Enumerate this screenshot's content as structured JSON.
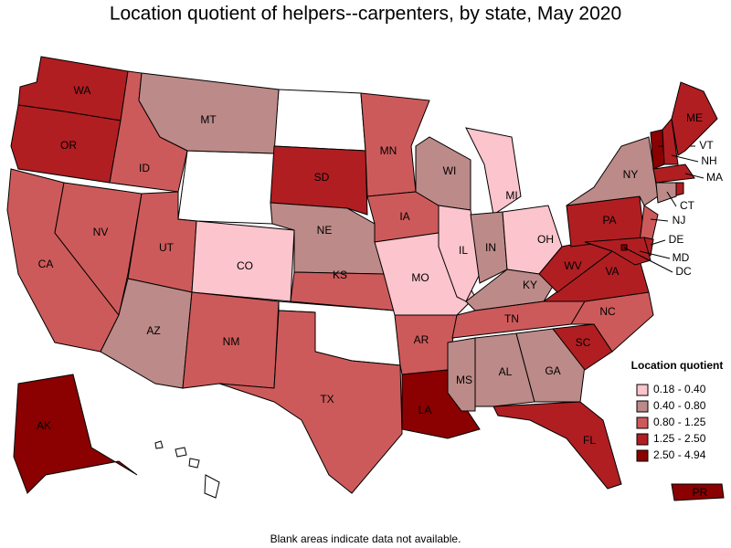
{
  "title": "Location quotient of helpers--carpenters, by state, May 2020",
  "footnote": "Blank areas indicate data not available.",
  "legend": {
    "title": "Location quotient",
    "items": [
      {
        "label": "0.18 - 0.40",
        "color": "#fcc4cc"
      },
      {
        "label": "0.40 - 0.80",
        "color": "#bc8a88"
      },
      {
        "label": "0.80 - 1.25",
        "color": "#cd5a5a"
      },
      {
        "label": "1.25 - 2.50",
        "color": "#b01e22"
      },
      {
        "label": "2.50 - 4.94",
        "color": "#8b0000"
      }
    ]
  },
  "states": [
    {
      "label": "WA",
      "class": "1.25 - 2.50"
    },
    {
      "label": "OR",
      "class": "1.25 - 2.50"
    },
    {
      "label": "CA",
      "class": "0.80 - 1.25"
    },
    {
      "label": "NV",
      "class": "0.80 - 1.25"
    },
    {
      "label": "ID",
      "class": "0.80 - 1.25"
    },
    {
      "label": "MT",
      "class": "0.40 - 0.80"
    },
    {
      "label": "UT",
      "class": "0.80 - 1.25"
    },
    {
      "label": "AZ",
      "class": "0.40 - 0.80"
    },
    {
      "label": "CO",
      "class": "0.18 - 0.40"
    },
    {
      "label": "NM",
      "class": "0.80 - 1.25"
    },
    {
      "label": "SD",
      "class": "1.25 - 2.50"
    },
    {
      "label": "NE",
      "class": "0.40 - 0.80"
    },
    {
      "label": "KS",
      "class": "0.80 - 1.25"
    },
    {
      "label": "TX",
      "class": "0.80 - 1.25"
    },
    {
      "label": "MN",
      "class": "0.80 - 1.25"
    },
    {
      "label": "IA",
      "class": "0.80 - 1.25"
    },
    {
      "label": "MO",
      "class": "0.18 - 0.40"
    },
    {
      "label": "AR",
      "class": "0.80 - 1.25"
    },
    {
      "label": "LA",
      "class": "2.50 - 4.94"
    },
    {
      "label": "WI",
      "class": "0.40 - 0.80"
    },
    {
      "label": "IL",
      "class": "0.18 - 0.40"
    },
    {
      "label": "MI",
      "class": "0.18 - 0.40"
    },
    {
      "label": "IN",
      "class": "0.40 - 0.80"
    },
    {
      "label": "OH",
      "class": "0.18 - 0.40"
    },
    {
      "label": "KY",
      "class": "0.40 - 0.80"
    },
    {
      "label": "TN",
      "class": "0.80 - 1.25"
    },
    {
      "label": "MS",
      "class": "0.40 - 0.80"
    },
    {
      "label": "AL",
      "class": "0.40 - 0.80"
    },
    {
      "label": "GA",
      "class": "0.40 - 0.80"
    },
    {
      "label": "FL",
      "class": "1.25 - 2.50"
    },
    {
      "label": "SC",
      "class": "1.25 - 2.50"
    },
    {
      "label": "NC",
      "class": "0.80 - 1.25"
    },
    {
      "label": "VA",
      "class": "1.25 - 2.50"
    },
    {
      "label": "WV",
      "class": "1.25 - 2.50"
    },
    {
      "label": "PA",
      "class": "1.25 - 2.50"
    },
    {
      "label": "NY",
      "class": "0.40 - 0.80"
    },
    {
      "label": "NJ",
      "class": "0.80 - 1.25"
    },
    {
      "label": "DE",
      "class": "1.25 - 2.50"
    },
    {
      "label": "MD",
      "class": "1.25 - 2.50"
    },
    {
      "label": "VT",
      "class": "2.50 - 4.94"
    },
    {
      "label": "NH",
      "class": "1.25 - 2.50"
    },
    {
      "label": "ME",
      "class": "1.25 - 2.50"
    },
    {
      "label": "MA",
      "class": "1.25 - 2.50"
    },
    {
      "label": "CT",
      "class": "0.40 - 0.80"
    },
    {
      "label": "DC",
      "class": "2.50 - 4.94"
    },
    {
      "label": "AK",
      "class": "2.50 - 4.94"
    },
    {
      "label": "PR",
      "class": "2.50 - 4.94"
    }
  ]
}
